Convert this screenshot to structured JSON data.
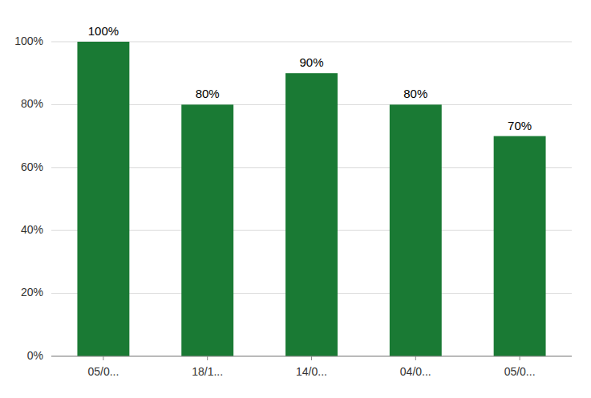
{
  "chart_data": {
    "type": "bar",
    "categories": [
      "05/0...",
      "18/1...",
      "14/0...",
      "04/0...",
      "05/0..."
    ],
    "values": [
      1.0,
      0.8,
      0.9,
      0.8,
      0.7
    ],
    "value_labels": [
      "100%",
      "80%",
      "90%",
      "80%",
      "70%"
    ],
    "data_labels": true,
    "color": "#1a7a34",
    "ylim": [
      0,
      1.0
    ],
    "yticks": [
      {
        "value": 0,
        "label": "0%"
      },
      {
        "value": 0.2,
        "label": "20%"
      },
      {
        "value": 0.4,
        "label": "40%"
      },
      {
        "value": 0.6,
        "label": "60%"
      },
      {
        "value": 0.8,
        "label": "80%"
      },
      {
        "value": 1.0,
        "label": "100%"
      }
    ],
    "grid": true
  }
}
